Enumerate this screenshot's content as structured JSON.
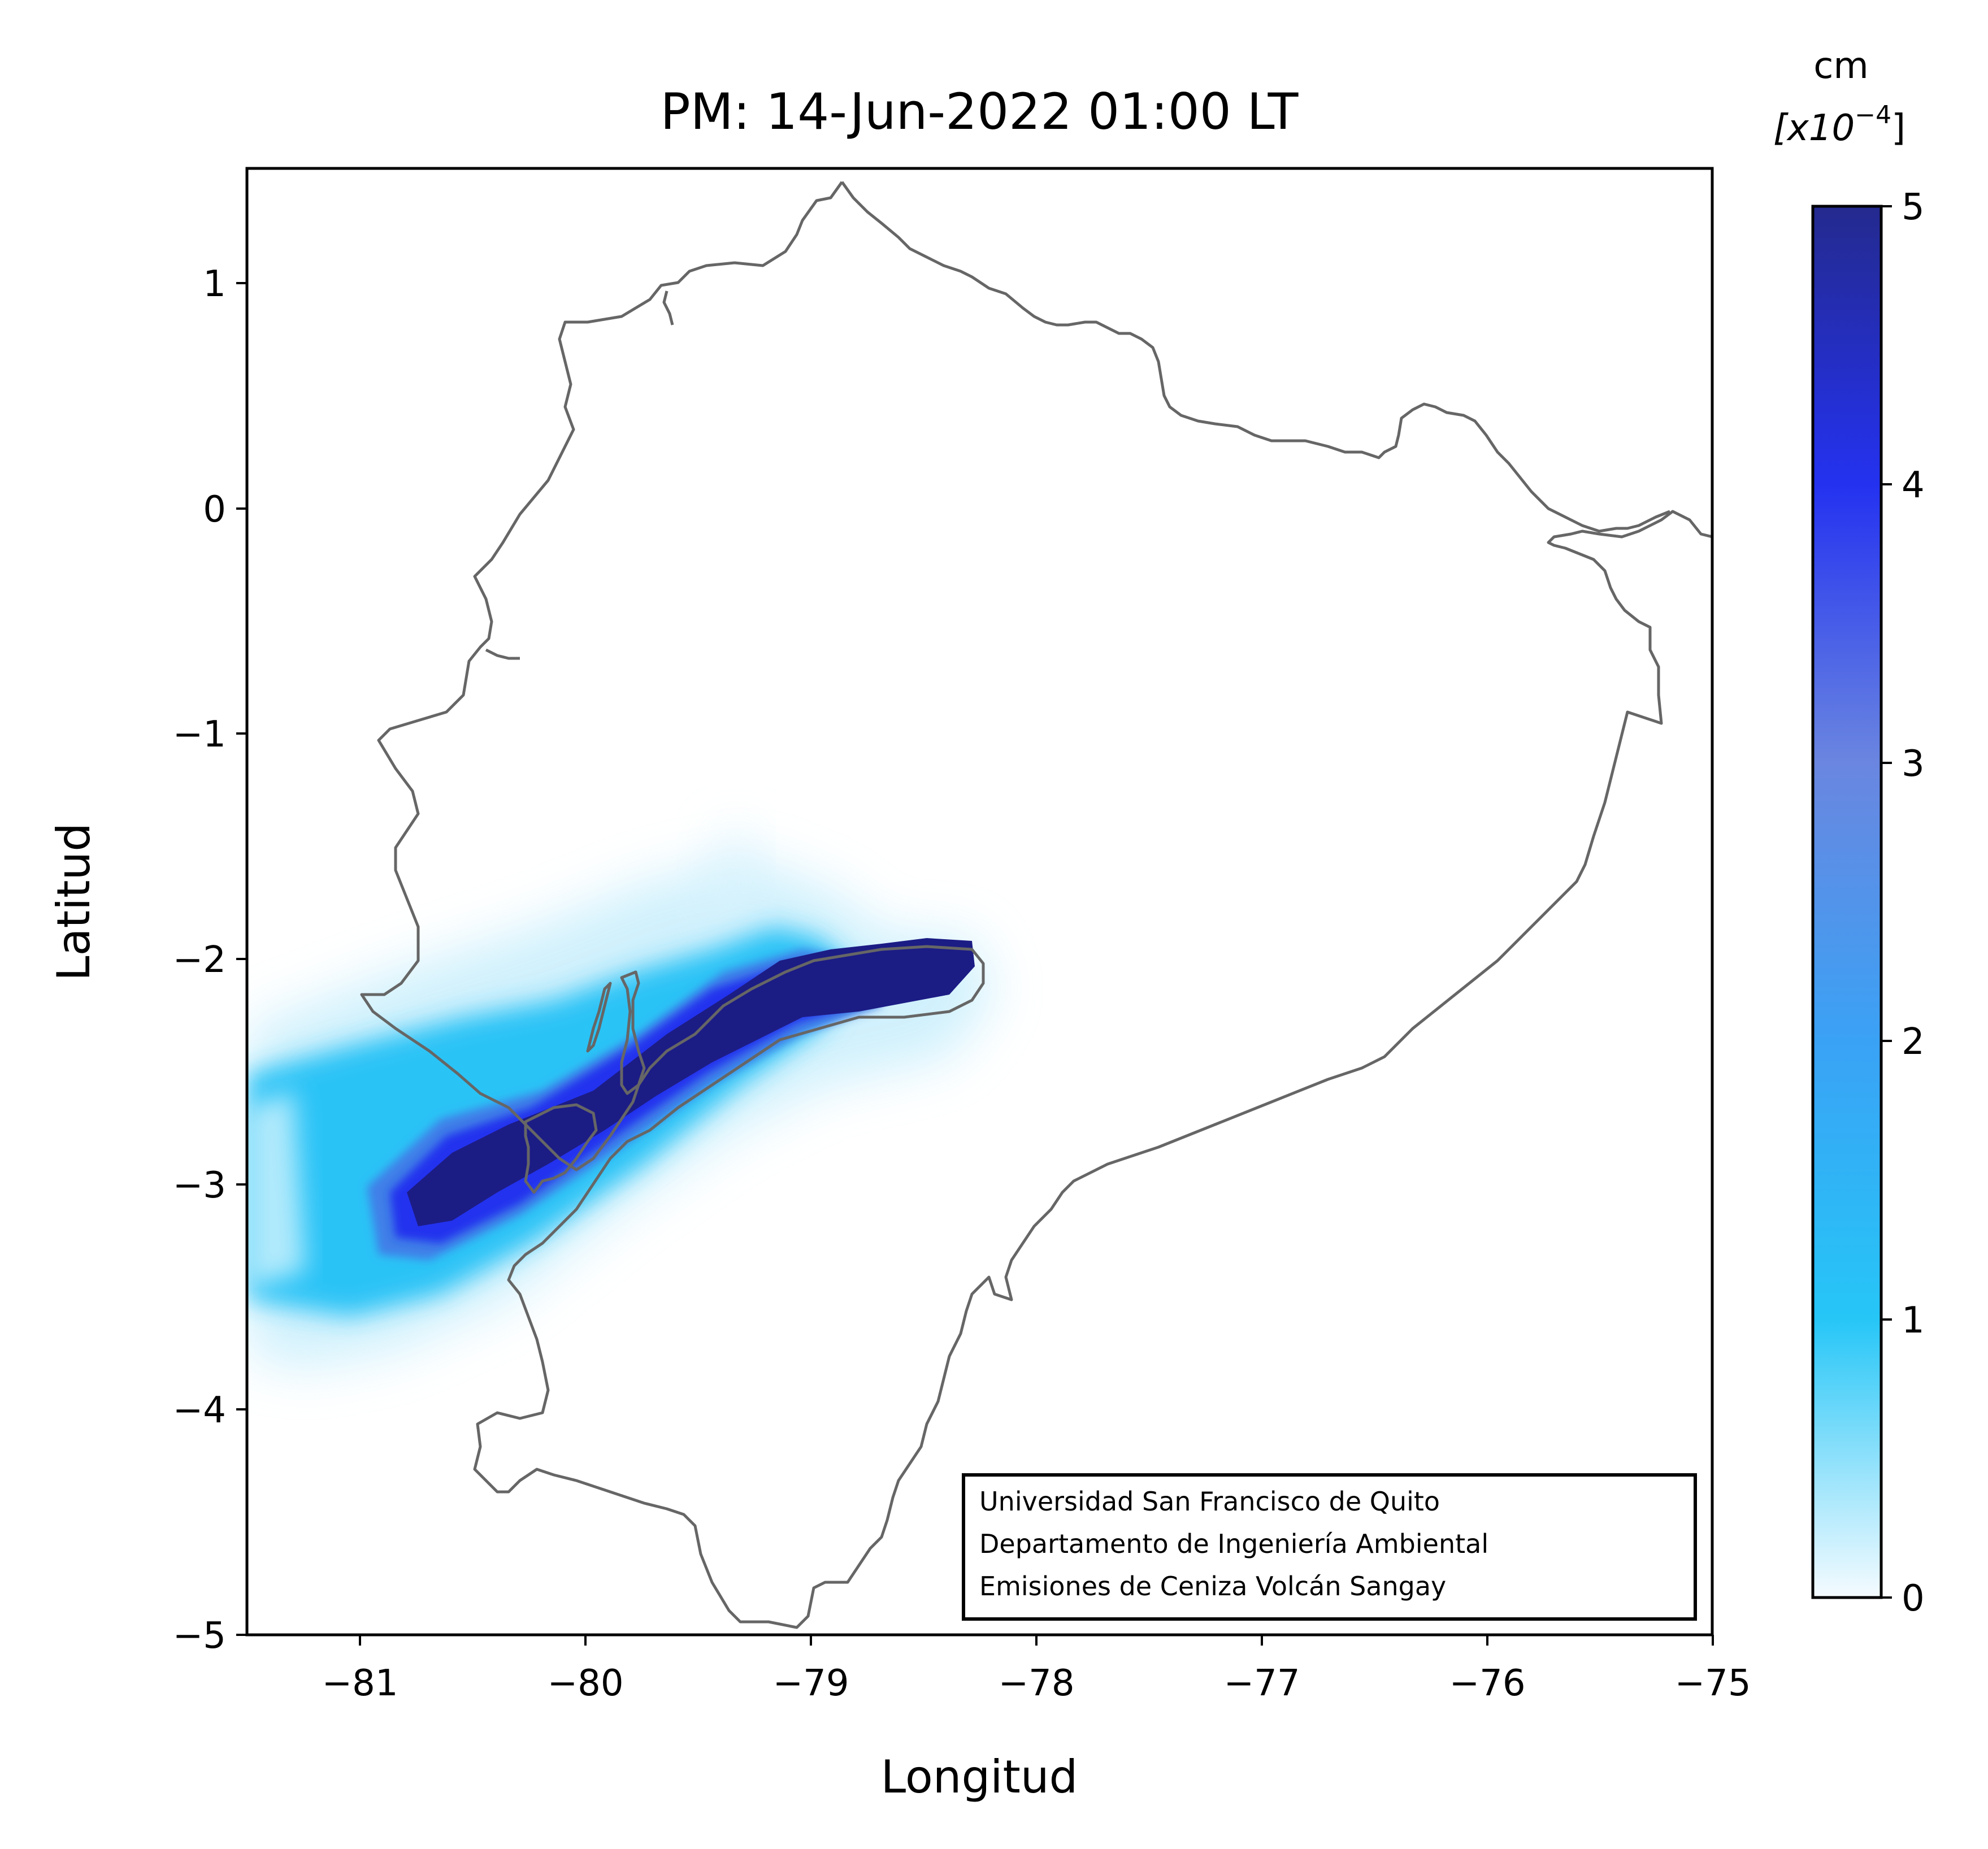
{
  "title": "PM: 14-Jun-2022 01:00 LT",
  "xlabel": "Longitud",
  "ylabel": "Latitud",
  "x_ticks": [
    "−81",
    "−80",
    "−79",
    "−78",
    "−77",
    "−76",
    "−75"
  ],
  "y_ticks": [
    "1",
    "0",
    "−1",
    "−2",
    "−3",
    "−4",
    "−5"
  ],
  "colorbar": {
    "unit_line1": "cm",
    "unit_line2": "[x10",
    "unit_exponent": "−4",
    "unit_close": "]",
    "ticks": [
      "0",
      "1",
      "2",
      "3",
      "4",
      "5"
    ],
    "range": [
      0,
      5
    ],
    "colors": [
      "#f5fbff",
      "#26c6f7",
      "#3aa2f5",
      "#6a86e0",
      "#2432f0",
      "#242a8e"
    ]
  },
  "credit": {
    "line1": "Universidad San Francisco de Quito",
    "line2": "Departamento de Ingeniería Ambiental",
    "line3": "Emisiones de Ceniza Volcán Sangay"
  },
  "map_data": {
    "lon_range": [
      -81.5,
      -75
    ],
    "lat_range": [
      -5,
      1.5
    ],
    "border_color": "#666666",
    "plume_max_color": "#1c1c85"
  }
}
